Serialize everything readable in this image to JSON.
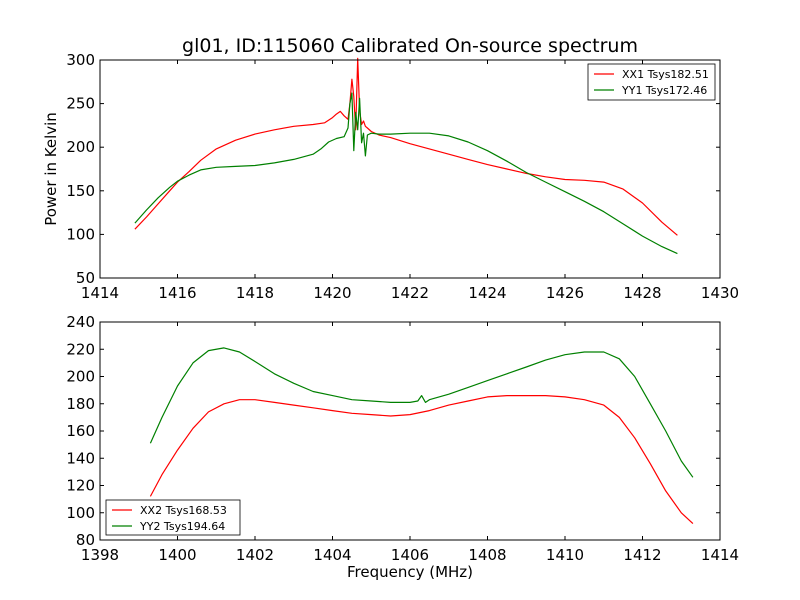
{
  "chart_data": [
    {
      "type": "line",
      "title": "gl01, ID:115060 Calibrated On-source spectrum",
      "xlabel": "",
      "ylabel": "Power in Kelvin",
      "xlim": [
        1414,
        1430
      ],
      "ylim": [
        50,
        300
      ],
      "xticks": [
        1414,
        1416,
        1418,
        1420,
        1422,
        1424,
        1426,
        1428,
        1430
      ],
      "yticks": [
        50,
        100,
        150,
        200,
        250,
        300
      ],
      "legend_position": "top-right",
      "grid": false,
      "series": [
        {
          "name": "XX1 Tsys182.51",
          "color": "#ff0000",
          "x": [
            1414.9,
            1415.2,
            1415.5,
            1415.8,
            1416.0,
            1416.3,
            1416.6,
            1417.0,
            1417.5,
            1418.0,
            1418.5,
            1419.0,
            1419.5,
            1419.8,
            1420.0,
            1420.1,
            1420.2,
            1420.3,
            1420.4,
            1420.45,
            1420.5,
            1420.55,
            1420.6,
            1420.65,
            1420.7,
            1420.75,
            1420.8,
            1420.85,
            1420.9,
            1421.0,
            1421.2,
            1421.5,
            1422.0,
            1422.5,
            1423.0,
            1423.5,
            1424.0,
            1424.5,
            1425.0,
            1425.5,
            1426.0,
            1426.5,
            1427.0,
            1427.5,
            1428.0,
            1428.5,
            1428.9
          ],
          "y": [
            106,
            120,
            135,
            150,
            160,
            172,
            185,
            198,
            208,
            215,
            220,
            224,
            226,
            228,
            234,
            238,
            241,
            236,
            232,
            250,
            278,
            258,
            220,
            302,
            242,
            226,
            230,
            224,
            222,
            218,
            214,
            211,
            204,
            198,
            192,
            186,
            180,
            175,
            170,
            166,
            163,
            162,
            160,
            152,
            136,
            114,
            99
          ]
        },
        {
          "name": "YY1 Tsys172.46",
          "color": "#008000",
          "x": [
            1414.9,
            1415.2,
            1415.5,
            1415.8,
            1416.0,
            1416.3,
            1416.6,
            1417.0,
            1417.5,
            1418.0,
            1418.5,
            1419.0,
            1419.5,
            1419.7,
            1419.9,
            1420.1,
            1420.3,
            1420.4,
            1420.45,
            1420.5,
            1420.55,
            1420.6,
            1420.65,
            1420.7,
            1420.75,
            1420.8,
            1420.85,
            1420.9,
            1421.0,
            1421.2,
            1421.5,
            1422.0,
            1422.5,
            1423.0,
            1423.5,
            1424.0,
            1424.5,
            1425.0,
            1425.5,
            1426.0,
            1426.5,
            1427.0,
            1427.5,
            1428.0,
            1428.5,
            1428.9
          ],
          "y": [
            113,
            128,
            142,
            154,
            161,
            168,
            174,
            177,
            178,
            179,
            182,
            186,
            192,
            198,
            206,
            210,
            212,
            222,
            250,
            262,
            196,
            240,
            220,
            256,
            205,
            216,
            190,
            214,
            216,
            215,
            215,
            216,
            216,
            213,
            206,
            196,
            184,
            171,
            160,
            149,
            138,
            126,
            112,
            98,
            86,
            78
          ]
        }
      ]
    },
    {
      "type": "line",
      "title": "",
      "xlabel": "Frequency (MHz)",
      "ylabel": "",
      "xlim": [
        1398,
        1414
      ],
      "ylim": [
        80,
        240
      ],
      "xticks": [
        1398,
        1400,
        1402,
        1404,
        1406,
        1408,
        1410,
        1412,
        1414
      ],
      "yticks": [
        80,
        100,
        120,
        140,
        160,
        180,
        200,
        220,
        240
      ],
      "legend_position": "bottom-left",
      "grid": false,
      "series": [
        {
          "name": "XX2 Tsys168.53",
          "color": "#ff0000",
          "x": [
            1399.3,
            1399.6,
            1400.0,
            1400.4,
            1400.8,
            1401.2,
            1401.6,
            1402.0,
            1402.5,
            1403.0,
            1403.5,
            1404.0,
            1404.5,
            1405.0,
            1405.5,
            1406.0,
            1406.5,
            1407.0,
            1407.5,
            1408.0,
            1408.5,
            1409.0,
            1409.5,
            1410.0,
            1410.5,
            1411.0,
            1411.4,
            1411.8,
            1412.2,
            1412.6,
            1413.0,
            1413.3
          ],
          "y": [
            112,
            128,
            146,
            162,
            174,
            180,
            183,
            183,
            181,
            179,
            177,
            175,
            173,
            172,
            171,
            172,
            175,
            179,
            182,
            185,
            186,
            186,
            186,
            185,
            183,
            179,
            170,
            155,
            136,
            116,
            100,
            92
          ]
        },
        {
          "name": "YY2 Tsys194.64",
          "color": "#008000",
          "x": [
            1399.3,
            1399.6,
            1400.0,
            1400.4,
            1400.8,
            1401.2,
            1401.6,
            1402.0,
            1402.5,
            1403.0,
            1403.5,
            1404.0,
            1404.5,
            1405.0,
            1405.5,
            1406.0,
            1406.2,
            1406.3,
            1406.4,
            1406.5,
            1407.0,
            1407.5,
            1408.0,
            1408.5,
            1409.0,
            1409.5,
            1410.0,
            1410.5,
            1411.0,
            1411.4,
            1411.8,
            1412.2,
            1412.6,
            1413.0,
            1413.3
          ],
          "y": [
            151,
            170,
            193,
            210,
            219,
            221,
            218,
            211,
            202,
            195,
            189,
            186,
            183,
            182,
            181,
            181,
            182,
            186,
            181,
            183,
            187,
            192,
            197,
            202,
            207,
            212,
            216,
            218,
            218,
            213,
            200,
            180,
            160,
            138,
            126
          ]
        }
      ]
    }
  ]
}
